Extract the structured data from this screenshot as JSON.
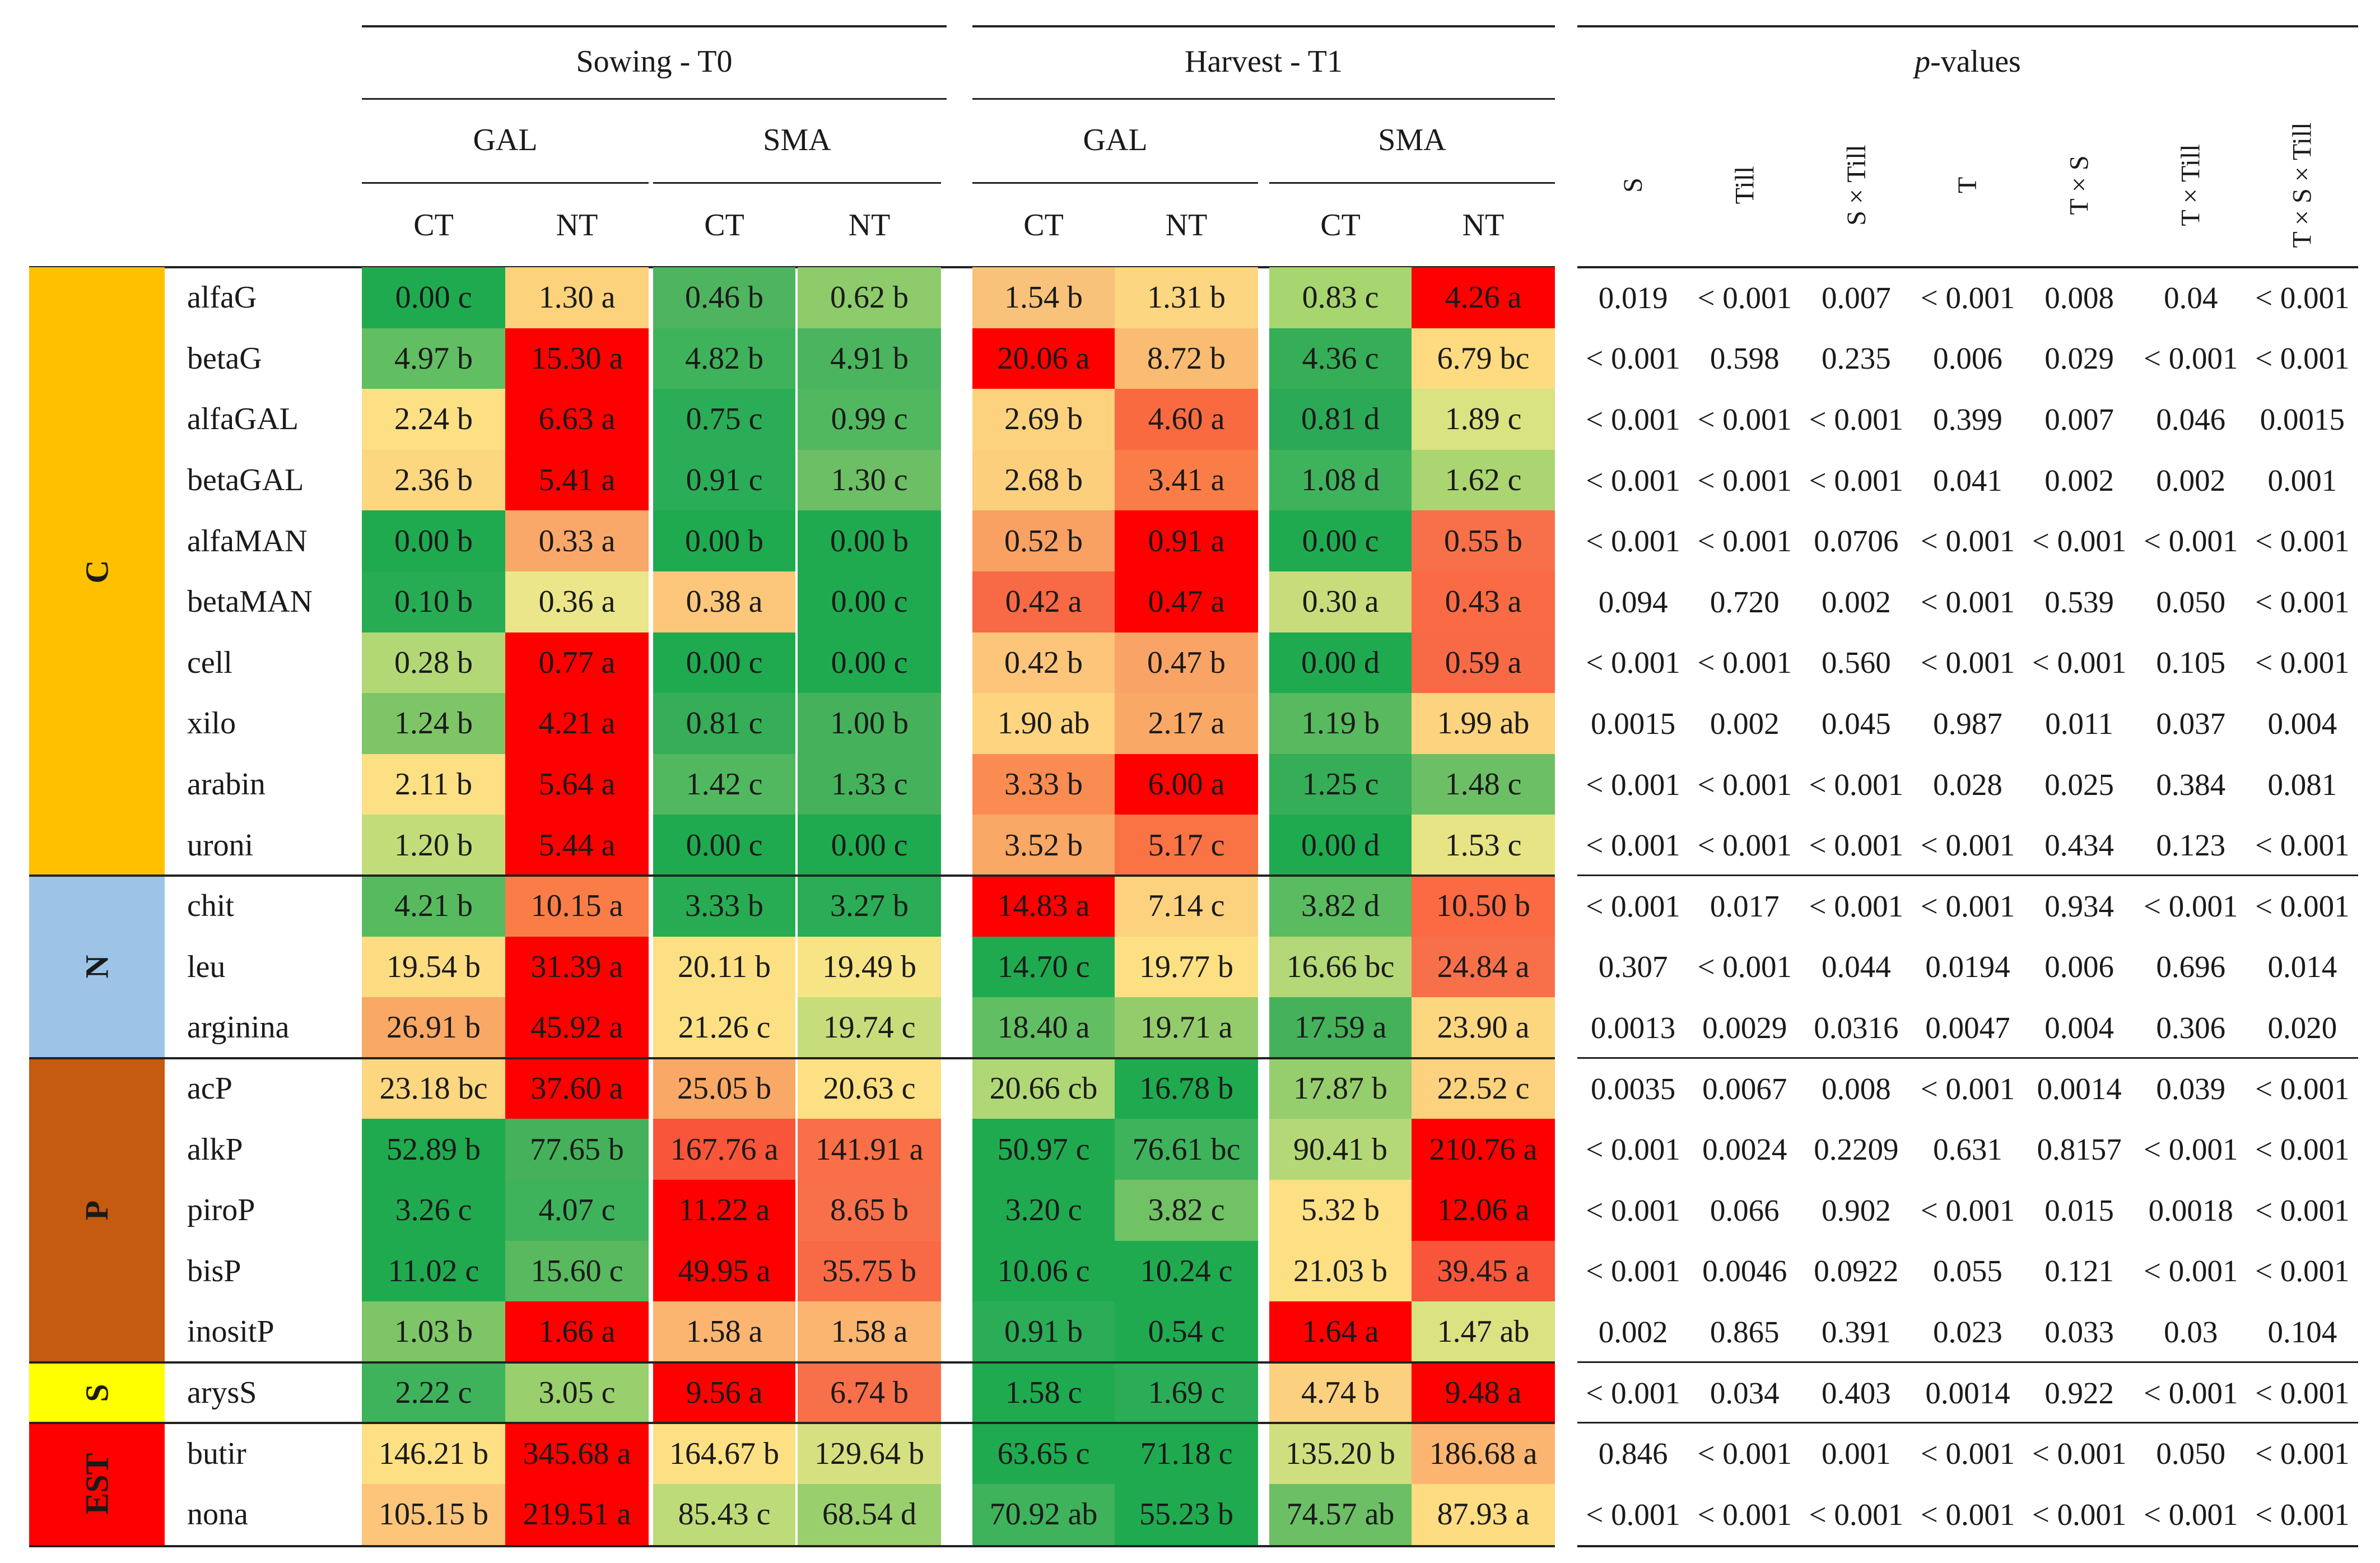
{
  "headers": {
    "time_t0": "Sowing - T0",
    "time_t1": "Harvest - T1",
    "pvalues_p": "p",
    "pvalues_rest": " -values",
    "site_gal": "GAL",
    "site_sma": "SMA",
    "till_ct": "CT",
    "till_nt": "NT"
  },
  "pvalue_columns": [
    "S",
    "Till",
    "S × Till",
    "T",
    "T × S",
    "T × Till",
    "T × S × Till"
  ],
  "groups": [
    {
      "label": "C",
      "color": "#FFC000",
      "rows": 10
    },
    {
      "label": "N",
      "color": "#9DC3E6",
      "rows": 3
    },
    {
      "label": "P",
      "color": "#C55A11",
      "rows": 5
    },
    {
      "label": "S",
      "color": "#FFFF00",
      "rows": 1
    },
    {
      "label": "EST",
      "color": "#FF0000",
      "rows": 2
    }
  ],
  "rows": [
    {
      "name": "alfaG",
      "values": [
        "0.00 c",
        "1.30 a",
        "0.46 b",
        "0.62 b",
        "1.54 b",
        "1.31 b",
        "0.83 c",
        "4.26 a"
      ],
      "colors": [
        "#1faa50",
        "#fcd27d",
        "#4fb460",
        "#8dcb6b",
        "#f9c27a",
        "#fcd680",
        "#a7d56f",
        "#ff0000"
      ],
      "pvalues": [
        "0.019",
        "< 0.001",
        "0.007",
        "< 0.001",
        "0.008",
        "0.04",
        "< 0.001"
      ]
    },
    {
      "name": "betaG",
      "values": [
        "4.97 b",
        "15.30 a",
        "4.82 b",
        "4.91 b",
        "20.06 a",
        "8.72 b",
        "4.36 c",
        "6.79 bc"
      ],
      "colors": [
        "#61be62",
        "#ff0000",
        "#3fb25c",
        "#4ab55e",
        "#ff0000",
        "#f9bc72",
        "#36ad57",
        "#fedb81"
      ],
      "pvalues": [
        "< 0.001",
        "0.598",
        "0.235",
        "0.006",
        "0.029",
        "< 0.001",
        "< 0.001"
      ]
    },
    {
      "name": "alfaGAL",
      "values": [
        "2.24 b",
        "6.63 a",
        "0.75 c",
        "0.99 c",
        "2.69 b",
        "4.60 a",
        "0.81 d",
        "1.89 c"
      ],
      "colors": [
        "#fde083",
        "#ff0000",
        "#2aad56",
        "#52b85f",
        "#fdd27e",
        "#fa6a41",
        "#2ba956",
        "#d9e381"
      ],
      "pvalues": [
        "< 0.001",
        "< 0.001",
        "< 0.001",
        "0.399",
        "0.007",
        "0.046",
        "0.0015"
      ]
    },
    {
      "name": "betaGAL",
      "values": [
        "2.36 b",
        "5.41 a",
        "0.91 c",
        "1.30 c",
        "2.68 b",
        "3.41 a",
        "1.08 d",
        "1.62 c"
      ],
      "colors": [
        "#fdd680",
        "#ff0000",
        "#2aad56",
        "#6cbf64",
        "#fccf7d",
        "#fa7d48",
        "#3fb25c",
        "#aad570"
      ],
      "pvalues": [
        "< 0.001",
        "< 0.001",
        "< 0.001",
        "0.041",
        "0.002",
        "0.002",
        "0.001"
      ]
    },
    {
      "name": "alfaMAN",
      "values": [
        "0.00 b",
        "0.33 a",
        "0.00 b",
        "0.00 b",
        "0.52 b",
        "0.91 a",
        "0.00 c",
        "0.55 b"
      ],
      "colors": [
        "#1faa50",
        "#f9a86a",
        "#1faa50",
        "#1faa50",
        "#f9a063",
        "#ff0000",
        "#1faa50",
        "#f8704a"
      ],
      "pvalues": [
        "< 0.001",
        "< 0.001",
        "0.0706",
        "< 0.001",
        "< 0.001",
        "< 0.001",
        "< 0.001"
      ]
    },
    {
      "name": "betaMAN",
      "values": [
        "0.10 b",
        "0.36 a",
        "0.38 a",
        "0.00 c",
        "0.42 a",
        "0.47 a",
        "0.30 a",
        "0.43 a"
      ],
      "colors": [
        "#28ac53",
        "#ebe689",
        "#fcc77a",
        "#1faa50",
        "#f86945",
        "#ff0000",
        "#c7dd7c",
        "#f96a45"
      ],
      "pvalues": [
        "0.094",
        "0.720",
        "0.002",
        "< 0.001",
        "0.539",
        "0.050",
        "< 0.001"
      ]
    },
    {
      "name": "cell",
      "values": [
        "0.28 b",
        "0.77 a",
        "0.00 c",
        "0.00 c",
        "0.42 b",
        "0.47 b",
        "0.00 d",
        "0.59 a"
      ],
      "colors": [
        "#b2d876",
        "#ff0000",
        "#1faa50",
        "#1faa50",
        "#fcc57a",
        "#f9a466",
        "#1faa50",
        "#f86a45"
      ],
      "pvalues": [
        "< 0.001",
        "< 0.001",
        "0.560",
        "< 0.001",
        "< 0.001",
        "0.105",
        "< 0.001"
      ]
    },
    {
      "name": "xilo",
      "values": [
        "1.24 b",
        "4.21 a",
        "0.81 c",
        "1.00 b",
        "1.90 ab",
        "2.17 a",
        "1.19 b",
        "1.99 ab"
      ],
      "colors": [
        "#7dc567",
        "#ff0000",
        "#36ad57",
        "#45b25b",
        "#fed480",
        "#f9a865",
        "#58b95f",
        "#fcd37f"
      ],
      "pvalues": [
        "0.0015",
        "0.002",
        "0.045",
        "0.987",
        "0.011",
        "0.037",
        "0.004"
      ]
    },
    {
      "name": "arabin",
      "values": [
        "2.11 b",
        "5.64 a",
        "1.42 c",
        "1.33 c",
        "3.33 b",
        "6.00 a",
        "1.25 c",
        "1.48 c"
      ],
      "colors": [
        "#fde083",
        "#ff0000",
        "#52b85f",
        "#45b25b",
        "#fa8c52",
        "#ff0000",
        "#36ad57",
        "#6cbf64"
      ],
      "pvalues": [
        "< 0.001",
        "< 0.001",
        "< 0.001",
        "0.028",
        "0.025",
        "0.384",
        "0.081"
      ]
    },
    {
      "name": "uroni",
      "values": [
        "1.20 b",
        "5.44 a",
        "0.00 c",
        "0.00 c",
        "3.52 b",
        "5.17 c",
        "0.00 d",
        "1.53 c"
      ],
      "colors": [
        "#c2dc7a",
        "#ff0000",
        "#1faa50",
        "#1faa50",
        "#f9a866",
        "#fa7345",
        "#1faa50",
        "#e7e486"
      ],
      "pvalues": [
        "< 0.001",
        "< 0.001",
        "< 0.001",
        "< 0.001",
        "0.434",
        "0.123",
        "< 0.001"
      ]
    },
    {
      "name": "chit",
      "values": [
        "4.21 b",
        "10.15 a",
        "3.33 b",
        "3.27 b",
        "14.83 a",
        "7.14 c",
        "3.82 d",
        "10.50 b"
      ],
      "colors": [
        "#58ba5f",
        "#fa7d48",
        "#28ac53",
        "#2aad56",
        "#ff0000",
        "#fcd27e",
        "#5abb60",
        "#fb6a42"
      ],
      "pvalues": [
        "< 0.001",
        "0.017",
        "< 0.001",
        "< 0.001",
        "0.934",
        "< 0.001",
        "< 0.001"
      ]
    },
    {
      "name": "leu",
      "values": [
        "19.54 b",
        "31.39 a",
        "20.11 b",
        "19.49 b",
        "14.70 c",
        "19.77 b",
        "16.66 bc",
        "24.84 a"
      ],
      "colors": [
        "#fddc82",
        "#ff0000",
        "#fde083",
        "#f6e485",
        "#1faa50",
        "#fde083",
        "#b4d877",
        "#f8704a"
      ],
      "pvalues": [
        "0.307",
        "< 0.001",
        "0.044",
        "0.0194",
        "0.006",
        "0.696",
        "0.014"
      ]
    },
    {
      "name": "arginina",
      "values": [
        "26.91 b",
        "45.92 a",
        "21.26 c",
        "19.74 c",
        "18.40 a",
        "19.71 a",
        "17.59 a",
        "23.90 a"
      ],
      "colors": [
        "#f9a866",
        "#ff0000",
        "#fde083",
        "#c7dd7c",
        "#61be62",
        "#94cc6c",
        "#45b25b",
        "#fdd680"
      ],
      "pvalues": [
        "0.0013",
        "0.0029",
        "0.0316",
        "0.0047",
        "0.004",
        "0.306",
        "0.020"
      ]
    },
    {
      "name": "acP",
      "values": [
        "23.18 bc",
        "37.60 a",
        "25.05 b",
        "20.63 c",
        "20.66 cb",
        "16.78 b",
        "17.87 b",
        "22.52 c"
      ],
      "colors": [
        "#fdd680",
        "#ff0000",
        "#f9a866",
        "#fde083",
        "#b0d776",
        "#1faa50",
        "#96cd6d",
        "#fcd27e"
      ],
      "pvalues": [
        "0.0035",
        "0.0067",
        "0.008",
        "< 0.001",
        "0.0014",
        "0.039",
        "< 0.001"
      ]
    },
    {
      "name": "alkP",
      "values": [
        "52.89 b",
        "77.65 b",
        "167.76 a",
        "141.91 a",
        "50.97 c",
        "76.61 bc",
        "90.41 b",
        "210.76 a"
      ],
      "colors": [
        "#1faa50",
        "#45b25b",
        "#f8553a",
        "#f96f47",
        "#1faa50",
        "#3fb25c",
        "#b4d877",
        "#ff0000"
      ],
      "pvalues": [
        "< 0.001",
        "0.0024",
        "0.2209",
        "0.631",
        "0.8157",
        "< 0.001",
        "< 0.001"
      ]
    },
    {
      "name": "piroP",
      "values": [
        "3.26 c",
        "4.07 c",
        "11.22 a",
        "8.65 b",
        "3.20 c",
        "3.82 c",
        "5.32 b",
        "12.06 a"
      ],
      "colors": [
        "#1faa50",
        "#3fb25c",
        "#ff0000",
        "#f8704a",
        "#1faa50",
        "#71c165",
        "#fde083",
        "#ff0000"
      ],
      "pvalues": [
        "< 0.001",
        "0.066",
        "0.902",
        "< 0.001",
        "0.015",
        "0.0018",
        "< 0.001"
      ]
    },
    {
      "name": "bisP",
      "values": [
        "11.02 c",
        "15.60 c",
        "49.95 a",
        "35.75 b",
        "10.06 c",
        "10.24 c",
        "21.03 b",
        "39.45 a"
      ],
      "colors": [
        "#1faa50",
        "#58b95f",
        "#ff0000",
        "#f86945",
        "#1faa50",
        "#1faa50",
        "#fde083",
        "#f8553a"
      ],
      "pvalues": [
        "< 0.001",
        "0.0046",
        "0.0922",
        "0.055",
        "0.121",
        "< 0.001",
        "< 0.001"
      ]
    },
    {
      "name": "inositP",
      "values": [
        "1.03 b",
        "1.66 a",
        "1.58 a",
        "1.58 a",
        "0.91 b",
        "0.54 c",
        "1.64 a",
        "1.47 ab"
      ],
      "colors": [
        "#7dc567",
        "#ff0000",
        "#fbb571",
        "#fbb571",
        "#2aad56",
        "#1faa50",
        "#ff0000",
        "#dbe282"
      ],
      "pvalues": [
        "0.002",
        "0.865",
        "0.391",
        "0.023",
        "0.033",
        "0.03",
        "0.104"
      ]
    },
    {
      "name": "arysS",
      "values": [
        "2.22 c",
        "3.05 c",
        "9.56 a",
        "6.74 b",
        "1.58 c",
        "1.69 c",
        "4.74 b",
        "9.48 a"
      ],
      "colors": [
        "#3fb25c",
        "#9acf6e",
        "#ff0000",
        "#f8704a",
        "#1faa50",
        "#2aad56",
        "#fbd07e",
        "#ff0000"
      ],
      "pvalues": [
        "< 0.001",
        "0.034",
        "0.403",
        "0.0014",
        "0.922",
        "< 0.001",
        "< 0.001"
      ]
    },
    {
      "name": "butir",
      "values": [
        "146.21 b",
        "345.68 a",
        "164.67 b",
        "129.64 b",
        "63.65 c",
        "71.18 c",
        "135.20 b",
        "186.68 a"
      ],
      "colors": [
        "#fde083",
        "#ff0000",
        "#fde083",
        "#d5e181",
        "#1faa50",
        "#1faa50",
        "#cfdf7f",
        "#fbb571"
      ],
      "pvalues": [
        "0.846",
        "< 0.001",
        "0.001",
        "< 0.001",
        "< 0.001",
        "0.050",
        "< 0.001"
      ]
    },
    {
      "name": "nona",
      "values": [
        "105.15 b",
        "219.51 a",
        "85.43 c",
        "68.54 d",
        "70.92 ab",
        "55.23 b",
        "74.57 ab",
        "87.93 a"
      ],
      "colors": [
        "#fcc57a",
        "#ff0000",
        "#bedb79",
        "#9acf6e",
        "#3fb25c",
        "#1faa50",
        "#6cbf64",
        "#fddc82"
      ],
      "pvalues": [
        "< 0.001",
        "< 0.001",
        "< 0.001",
        "< 0.001",
        "< 0.001",
        "< 0.001",
        "< 0.001"
      ]
    }
  ],
  "chart_data": {
    "type": "heatmap",
    "title": "",
    "column_groups": [
      {
        "time": "Sowing - T0",
        "site": "GAL",
        "tillage": [
          "CT",
          "NT"
        ]
      },
      {
        "time": "Sowing - T0",
        "site": "SMA",
        "tillage": [
          "CT",
          "NT"
        ]
      },
      {
        "time": "Harvest - T1",
        "site": "GAL",
        "tillage": [
          "CT",
          "NT"
        ]
      },
      {
        "time": "Harvest - T1",
        "site": "SMA",
        "tillage": [
          "CT",
          "NT"
        ]
      }
    ],
    "row_groups": [
      "C",
      "N",
      "P",
      "S",
      "EST"
    ],
    "row_labels": [
      "alfaG",
      "betaG",
      "alfaGAL",
      "betaGAL",
      "alfaMAN",
      "betaMAN",
      "cell",
      "xilo",
      "arabin",
      "uroni",
      "chit",
      "leu",
      "arginina",
      "acP",
      "alkP",
      "piroP",
      "bisP",
      "inositP",
      "arysS",
      "butir",
      "nona"
    ],
    "color_scale": "green (low) - yellow - red (high), per row within each time",
    "pvalue_columns": [
      "S",
      "Till",
      "S × Till",
      "T",
      "T × S",
      "T × Till",
      "T × S × Till"
    ]
  }
}
